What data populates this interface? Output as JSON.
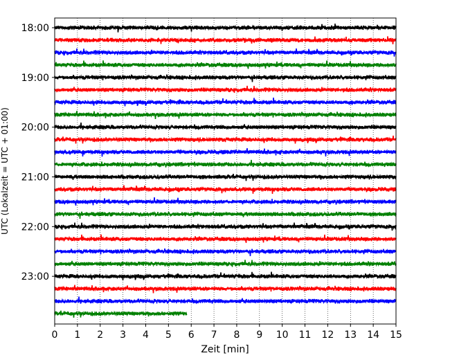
{
  "chart_data": {
    "type": "line",
    "title": "",
    "xlabel": "Zeit  [min]",
    "ylabel": "UTC (Lokalzeit = UTC + 01:00)",
    "xlim": [
      0,
      15
    ],
    "x_ticks": [
      0,
      1,
      2,
      3,
      4,
      5,
      6,
      7,
      8,
      9,
      10,
      11,
      12,
      13,
      14,
      15
    ],
    "x_tick_labels": [
      "0",
      "1",
      "2",
      "3",
      "4",
      "5",
      "6",
      "7",
      "8",
      "9",
      "10",
      "11",
      "12",
      "13",
      "14",
      "15"
    ],
    "y_tick_labels": [
      "18:00",
      "19:00",
      "20:00",
      "21:00",
      "22:00",
      "23:00"
    ],
    "grid": "vertical dotted",
    "trace_colors": [
      "#000000",
      "#ff0000",
      "#0000ff",
      "#008000"
    ],
    "traces": [
      {
        "start": "18:00",
        "duration_min": 15
      },
      {
        "start": "18:15",
        "duration_min": 15
      },
      {
        "start": "18:30",
        "duration_min": 15
      },
      {
        "start": "18:45",
        "duration_min": 15
      },
      {
        "start": "19:00",
        "duration_min": 15
      },
      {
        "start": "19:15",
        "duration_min": 15
      },
      {
        "start": "19:30",
        "duration_min": 15
      },
      {
        "start": "19:45",
        "duration_min": 15
      },
      {
        "start": "20:00",
        "duration_min": 15
      },
      {
        "start": "20:15",
        "duration_min": 15
      },
      {
        "start": "20:30",
        "duration_min": 15
      },
      {
        "start": "20:45",
        "duration_min": 15
      },
      {
        "start": "21:00",
        "duration_min": 15
      },
      {
        "start": "21:15",
        "duration_min": 15
      },
      {
        "start": "21:30",
        "duration_min": 15
      },
      {
        "start": "21:45",
        "duration_min": 15
      },
      {
        "start": "22:00",
        "duration_min": 15
      },
      {
        "start": "22:15",
        "duration_min": 15
      },
      {
        "start": "22:30",
        "duration_min": 15
      },
      {
        "start": "22:45",
        "duration_min": 15
      },
      {
        "start": "23:00",
        "duration_min": 15
      },
      {
        "start": "23:15",
        "duration_min": 15
      },
      {
        "start": "23:30",
        "duration_min": 15
      },
      {
        "start": "23:45",
        "duration_min": 5.8
      }
    ]
  }
}
